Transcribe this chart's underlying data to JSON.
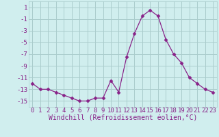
{
  "hours": [
    0,
    1,
    2,
    3,
    4,
    5,
    6,
    7,
    8,
    9,
    10,
    11,
    12,
    13,
    14,
    15,
    16,
    17,
    18,
    19,
    20,
    21,
    22,
    23
  ],
  "windchill": [
    -12,
    -13,
    -13,
    -13.5,
    -14,
    -14.5,
    -15,
    -15,
    -14.5,
    -14.5,
    -11.5,
    -13.5,
    -7.5,
    -3.5,
    -0.5,
    0.5,
    -0.5,
    -4.5,
    -7,
    -8.5,
    -11,
    -12,
    -13,
    -13.5
  ],
  "line_color": "#882288",
  "marker": "D",
  "marker_size": 2.5,
  "bg_color": "#d0eeee",
  "grid_color": "#aacccc",
  "xlabel": "Windchill (Refroidissement éolien,°C)",
  "ylabel_ticks": [
    1,
    -1,
    -3,
    -5,
    -7,
    -9,
    -11,
    -13,
    -15
  ],
  "ylim": [
    -16,
    2
  ],
  "xlim": [
    -0.5,
    23.5
  ],
  "tick_color": "#882288",
  "tick_fontsize": 6.5,
  "xlabel_fontsize": 7.0
}
